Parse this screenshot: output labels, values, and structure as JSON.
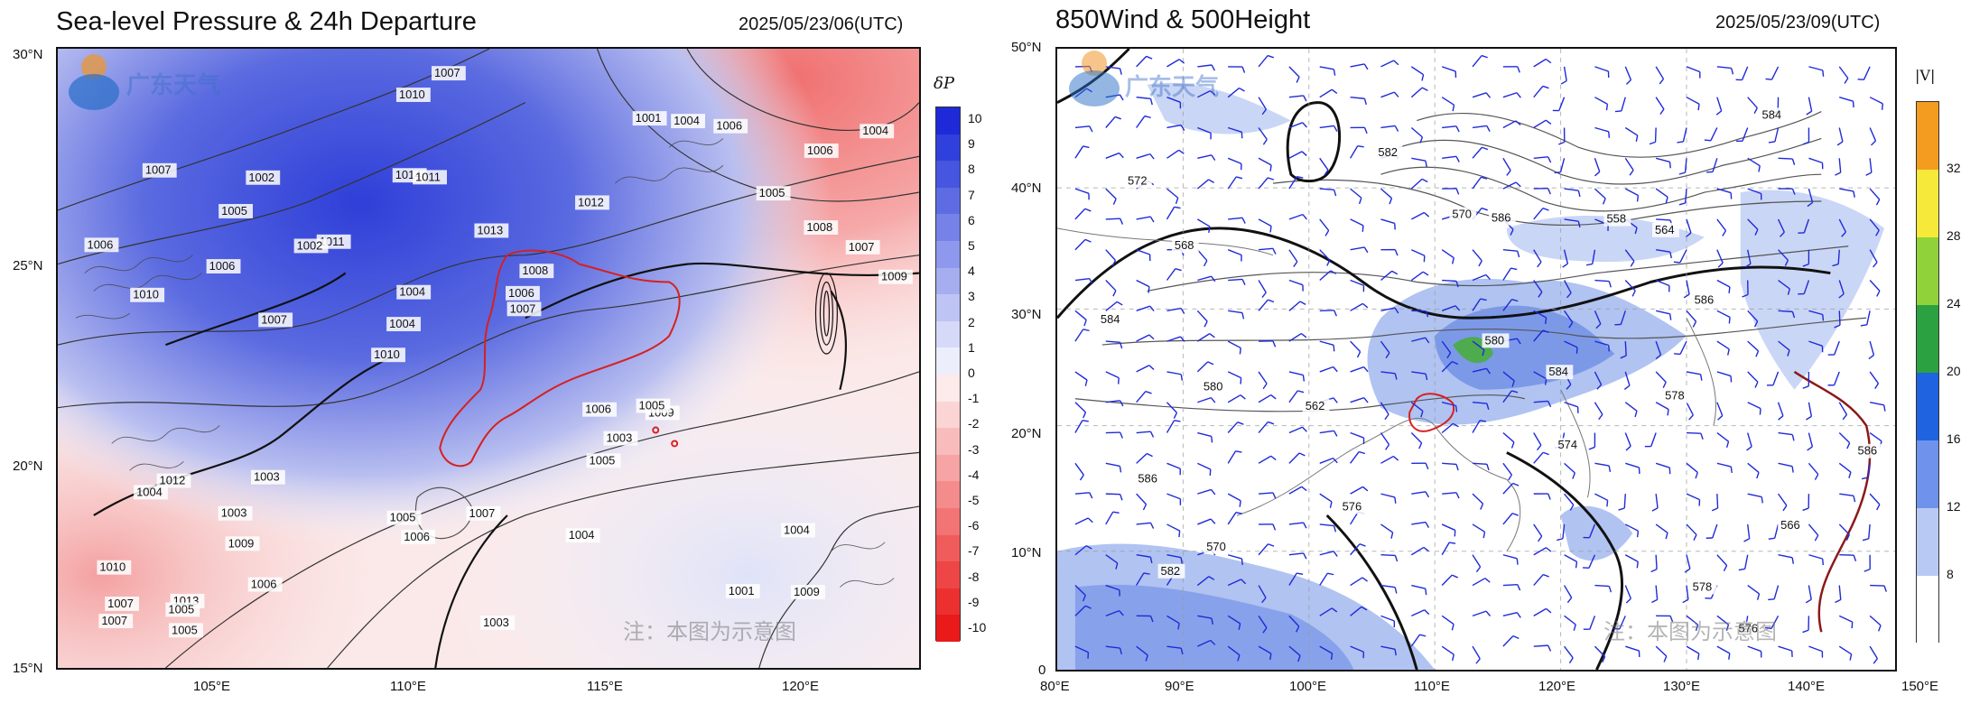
{
  "left": {
    "title": "Sea-level Pressure & 24h Departure",
    "timestamp": "2025/05/23/06(UTC)",
    "x_ticks": [
      "105°E",
      "110°E",
      "115°E",
      "120°E"
    ],
    "y_ticks": [
      "30°N",
      "25°N",
      "20°N",
      "15°N"
    ],
    "colorbar_title": "δP",
    "colorbar_labels": [
      "10",
      "9",
      "8",
      "7",
      "6",
      "5",
      "4",
      "3",
      "2",
      "1",
      "0",
      "-1",
      "-2",
      "-3",
      "-4",
      "-5",
      "-6",
      "-7",
      "-8",
      "-9",
      "-10"
    ],
    "contour_labels": [
      "1009",
      "1010",
      "1006",
      "1010",
      "1012",
      "1013",
      "1014",
      "1013",
      "1012",
      "1011",
      "1010",
      "1009",
      "1011",
      "1008",
      "1009",
      "1007",
      "1010",
      "1009",
      "1006",
      "1008",
      "1004",
      "1005",
      "1004",
      "1002",
      "1001",
      "1003",
      "1001",
      "1004",
      "1005",
      "1003",
      "1002",
      "1006",
      "1005",
      "1006",
      "1007",
      "1006",
      "1007",
      "1006",
      "1007",
      "1004",
      "1005",
      "1004",
      "1003",
      "1004",
      "1003",
      "1005",
      "1007",
      "1007",
      "1006",
      "1007",
      "1007",
      "1006",
      "1005",
      "1004",
      "1005"
    ],
    "watermark": "注：本图为示意图",
    "logo_text": "广东天气"
  },
  "right": {
    "title": "850Wind & 500Height",
    "timestamp": "2025/05/23/09(UTC)",
    "x_ticks": [
      "80°E",
      "90°E",
      "100°E",
      "110°E",
      "120°E",
      "130°E",
      "140°E",
      "150°E"
    ],
    "y_ticks": [
      "50°N",
      "40°N",
      "30°N",
      "20°N",
      "10°N",
      "0"
    ],
    "colorbar_title": "|V|",
    "colorbar_labels": [
      "32",
      "28",
      "24",
      "20",
      "16",
      "12",
      "8"
    ],
    "contour_labels": [
      "576",
      "580",
      "574",
      "572",
      "566",
      "568",
      "570",
      "562",
      "564",
      "570",
      "558",
      "578",
      "576",
      "582",
      "584",
      "586",
      "578",
      "580",
      "584",
      "582",
      "584",
      "586",
      "586",
      "586"
    ],
    "watermark": "注：本图为示意图",
    "logo_text": "广东天气"
  }
}
